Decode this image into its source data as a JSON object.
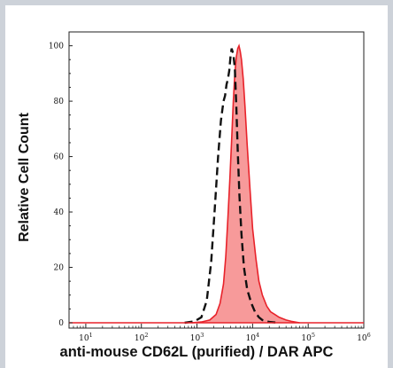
{
  "chart_data": {
    "type": "area",
    "title": "",
    "xlabel": "anti-mouse CD62L (purified) / DAR APC",
    "ylabel": "Relative Cell Count",
    "xscale": "log",
    "xlim": [
      5,
      1000000
    ],
    "ylim": [
      0,
      105
    ],
    "xticks": [
      {
        "value": 10,
        "base": "10",
        "exp": "1"
      },
      {
        "value": 100,
        "base": "10",
        "exp": "2"
      },
      {
        "value": 1000,
        "base": "10",
        "exp": "3"
      },
      {
        "value": 10000,
        "base": "10",
        "exp": "4"
      },
      {
        "value": 100000,
        "base": "10",
        "exp": "5"
      },
      {
        "value": 1000000,
        "base": "10",
        "exp": "6"
      }
    ],
    "yticks": [
      "0",
      "20",
      "40",
      "60",
      "80",
      "100"
    ],
    "grid": false,
    "legend": "none",
    "series": [
      {
        "style": "filled",
        "color": "#e8222a",
        "fill": "#f79a9a",
        "x": [
          800,
          1200,
          1700,
          2200,
          2600,
          3000,
          3300,
          3600,
          3900,
          4200,
          4500,
          4800,
          5100,
          5400,
          5700,
          6000,
          6300,
          6800,
          7300,
          8000,
          9000,
          10000,
          11500,
          13000,
          15000,
          18000,
          21000,
          25000,
          30000,
          40000,
          50000,
          70000
        ],
        "y": [
          0,
          0.3,
          1,
          3,
          7,
          14,
          24,
          38,
          52,
          66,
          80,
          90,
          96,
          99,
          100,
          98,
          95,
          88,
          78,
          64,
          48,
          34,
          23,
          15,
          10,
          6,
          4,
          3,
          2,
          1,
          0.5,
          0
        ]
      },
      {
        "style": "dashed",
        "color": "#111111",
        "x": [
          600,
          900,
          1200,
          1500,
          1800,
          2100,
          2400,
          2700,
          3000,
          3200,
          3400,
          3600,
          3800,
          4000,
          4200,
          4500,
          4800,
          5100,
          5400,
          5800,
          6300,
          7000,
          8000,
          9500,
          11000,
          13000,
          15000,
          20000,
          30000
        ],
        "y": [
          0,
          0.5,
          2,
          8,
          22,
          42,
          60,
          73,
          80,
          82,
          86,
          88,
          91,
          96,
          99,
          97,
          92,
          78,
          62,
          46,
          32,
          20,
          12,
          7,
          4,
          2,
          1,
          0.3,
          0
        ]
      }
    ]
  }
}
